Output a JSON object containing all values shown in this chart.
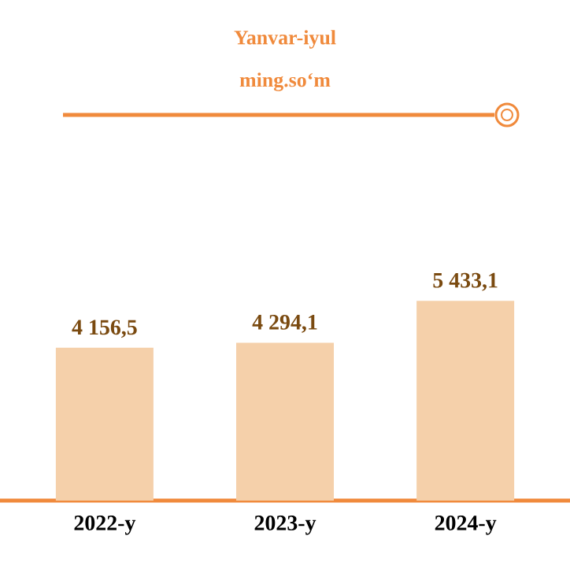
{
  "chart_data": {
    "type": "bar",
    "title": "Yanvar-iyul",
    "subtitle": "ming.so‘m",
    "categories": [
      "2022-y",
      "2023-y",
      "2024-y"
    ],
    "values": [
      4156.5,
      4294.1,
      5433.1
    ],
    "value_labels": [
      "4 156,5",
      "4 294,1",
      "5 433,1"
    ],
    "color": "#f5d0aa"
  }
}
